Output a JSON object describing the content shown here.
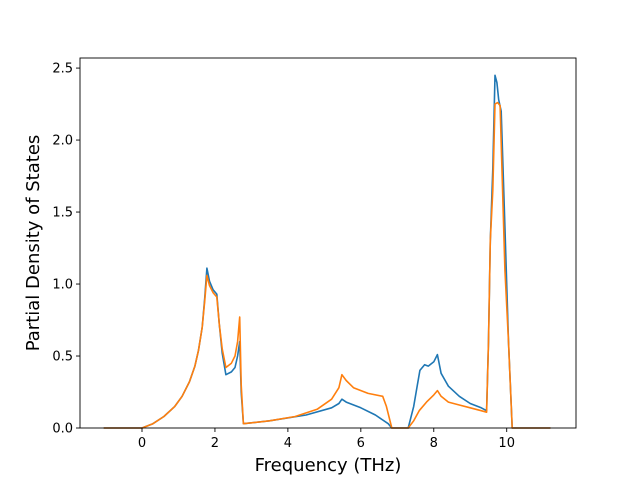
{
  "chart_data": {
    "type": "line",
    "title": "",
    "xlabel": "Frequency (THz)",
    "ylabel": "Partial Density of States",
    "xlim": [
      -1.7,
      11.9
    ],
    "ylim": [
      0,
      2.57
    ],
    "xticks": [
      0,
      2,
      4,
      6,
      8,
      10
    ],
    "yticks": [
      0.0,
      0.5,
      1.0,
      1.5,
      2.0,
      2.5
    ],
    "xtick_labels": [
      "0",
      "2",
      "4",
      "6",
      "8",
      "10"
    ],
    "ytick_labels": [
      "0.0",
      "0.5",
      "1.0",
      "1.5",
      "2.0",
      "2.5"
    ],
    "grid": false,
    "legend": "none",
    "series": [
      {
        "color": "#1f77b4",
        "points": [
          [
            -1.05,
            0
          ],
          [
            0,
            0
          ],
          [
            0.3,
            0.03
          ],
          [
            0.6,
            0.08
          ],
          [
            0.9,
            0.15
          ],
          [
            1.1,
            0.22
          ],
          [
            1.3,
            0.32
          ],
          [
            1.45,
            0.43
          ],
          [
            1.55,
            0.54
          ],
          [
            1.65,
            0.7
          ],
          [
            1.72,
            0.9
          ],
          [
            1.78,
            1.11
          ],
          [
            1.85,
            1.02
          ],
          [
            1.95,
            0.96
          ],
          [
            2.05,
            0.93
          ],
          [
            2.12,
            0.72
          ],
          [
            2.2,
            0.52
          ],
          [
            2.3,
            0.37
          ],
          [
            2.45,
            0.39
          ],
          [
            2.55,
            0.42
          ],
          [
            2.62,
            0.5
          ],
          [
            2.68,
            0.6
          ],
          [
            2.72,
            0.25
          ],
          [
            2.78,
            0.03
          ],
          [
            3.5,
            0.05
          ],
          [
            4.5,
            0.09
          ],
          [
            5.2,
            0.14
          ],
          [
            5.4,
            0.17
          ],
          [
            5.48,
            0.2
          ],
          [
            5.6,
            0.18
          ],
          [
            6.0,
            0.14
          ],
          [
            6.4,
            0.09
          ],
          [
            6.75,
            0.03
          ],
          [
            6.85,
            0.0
          ],
          [
            7.3,
            0.0
          ],
          [
            7.45,
            0.15
          ],
          [
            7.55,
            0.3
          ],
          [
            7.62,
            0.4
          ],
          [
            7.75,
            0.44
          ],
          [
            7.85,
            0.43
          ],
          [
            8.0,
            0.46
          ],
          [
            8.1,
            0.51
          ],
          [
            8.2,
            0.38
          ],
          [
            8.4,
            0.29
          ],
          [
            8.7,
            0.22
          ],
          [
            9.0,
            0.17
          ],
          [
            9.3,
            0.14
          ],
          [
            9.45,
            0.12
          ],
          [
            9.5,
            0.6
          ],
          [
            9.55,
            1.3
          ],
          [
            9.62,
            1.8
          ],
          [
            9.68,
            2.45
          ],
          [
            9.73,
            2.4
          ],
          [
            9.78,
            2.28
          ],
          [
            9.85,
            2.2
          ],
          [
            9.95,
            1.4
          ],
          [
            10.05,
            0.6
          ],
          [
            10.15,
            0.0
          ],
          [
            11.2,
            0.0
          ]
        ]
      },
      {
        "color": "#ff7f0e",
        "points": [
          [
            -1.05,
            0
          ],
          [
            0,
            0
          ],
          [
            0.3,
            0.03
          ],
          [
            0.6,
            0.08
          ],
          [
            0.9,
            0.15
          ],
          [
            1.1,
            0.22
          ],
          [
            1.3,
            0.32
          ],
          [
            1.45,
            0.43
          ],
          [
            1.55,
            0.54
          ],
          [
            1.65,
            0.7
          ],
          [
            1.72,
            0.88
          ],
          [
            1.78,
            1.06
          ],
          [
            1.85,
            0.99
          ],
          [
            1.95,
            0.94
          ],
          [
            2.05,
            0.91
          ],
          [
            2.12,
            0.72
          ],
          [
            2.2,
            0.55
          ],
          [
            2.3,
            0.42
          ],
          [
            2.45,
            0.45
          ],
          [
            2.55,
            0.5
          ],
          [
            2.62,
            0.6
          ],
          [
            2.68,
            0.77
          ],
          [
            2.72,
            0.3
          ],
          [
            2.78,
            0.03
          ],
          [
            3.5,
            0.05
          ],
          [
            4.2,
            0.08
          ],
          [
            4.8,
            0.13
          ],
          [
            5.2,
            0.2
          ],
          [
            5.4,
            0.28
          ],
          [
            5.48,
            0.37
          ],
          [
            5.6,
            0.33
          ],
          [
            5.8,
            0.28
          ],
          [
            6.2,
            0.24
          ],
          [
            6.6,
            0.22
          ],
          [
            6.7,
            0.15
          ],
          [
            6.85,
            0.0
          ],
          [
            7.3,
            0.0
          ],
          [
            7.45,
            0.05
          ],
          [
            7.6,
            0.12
          ],
          [
            7.8,
            0.18
          ],
          [
            8.0,
            0.23
          ],
          [
            8.1,
            0.26
          ],
          [
            8.2,
            0.22
          ],
          [
            8.4,
            0.18
          ],
          [
            8.7,
            0.16
          ],
          [
            9.0,
            0.14
          ],
          [
            9.3,
            0.12
          ],
          [
            9.45,
            0.11
          ],
          [
            9.5,
            0.6
          ],
          [
            9.55,
            1.3
          ],
          [
            9.62,
            1.65
          ],
          [
            9.68,
            2.25
          ],
          [
            9.75,
            2.26
          ],
          [
            9.82,
            2.24
          ],
          [
            9.95,
            1.1
          ],
          [
            10.05,
            0.6
          ],
          [
            10.15,
            0.0
          ],
          [
            11.2,
            0.0
          ]
        ]
      }
    ]
  }
}
